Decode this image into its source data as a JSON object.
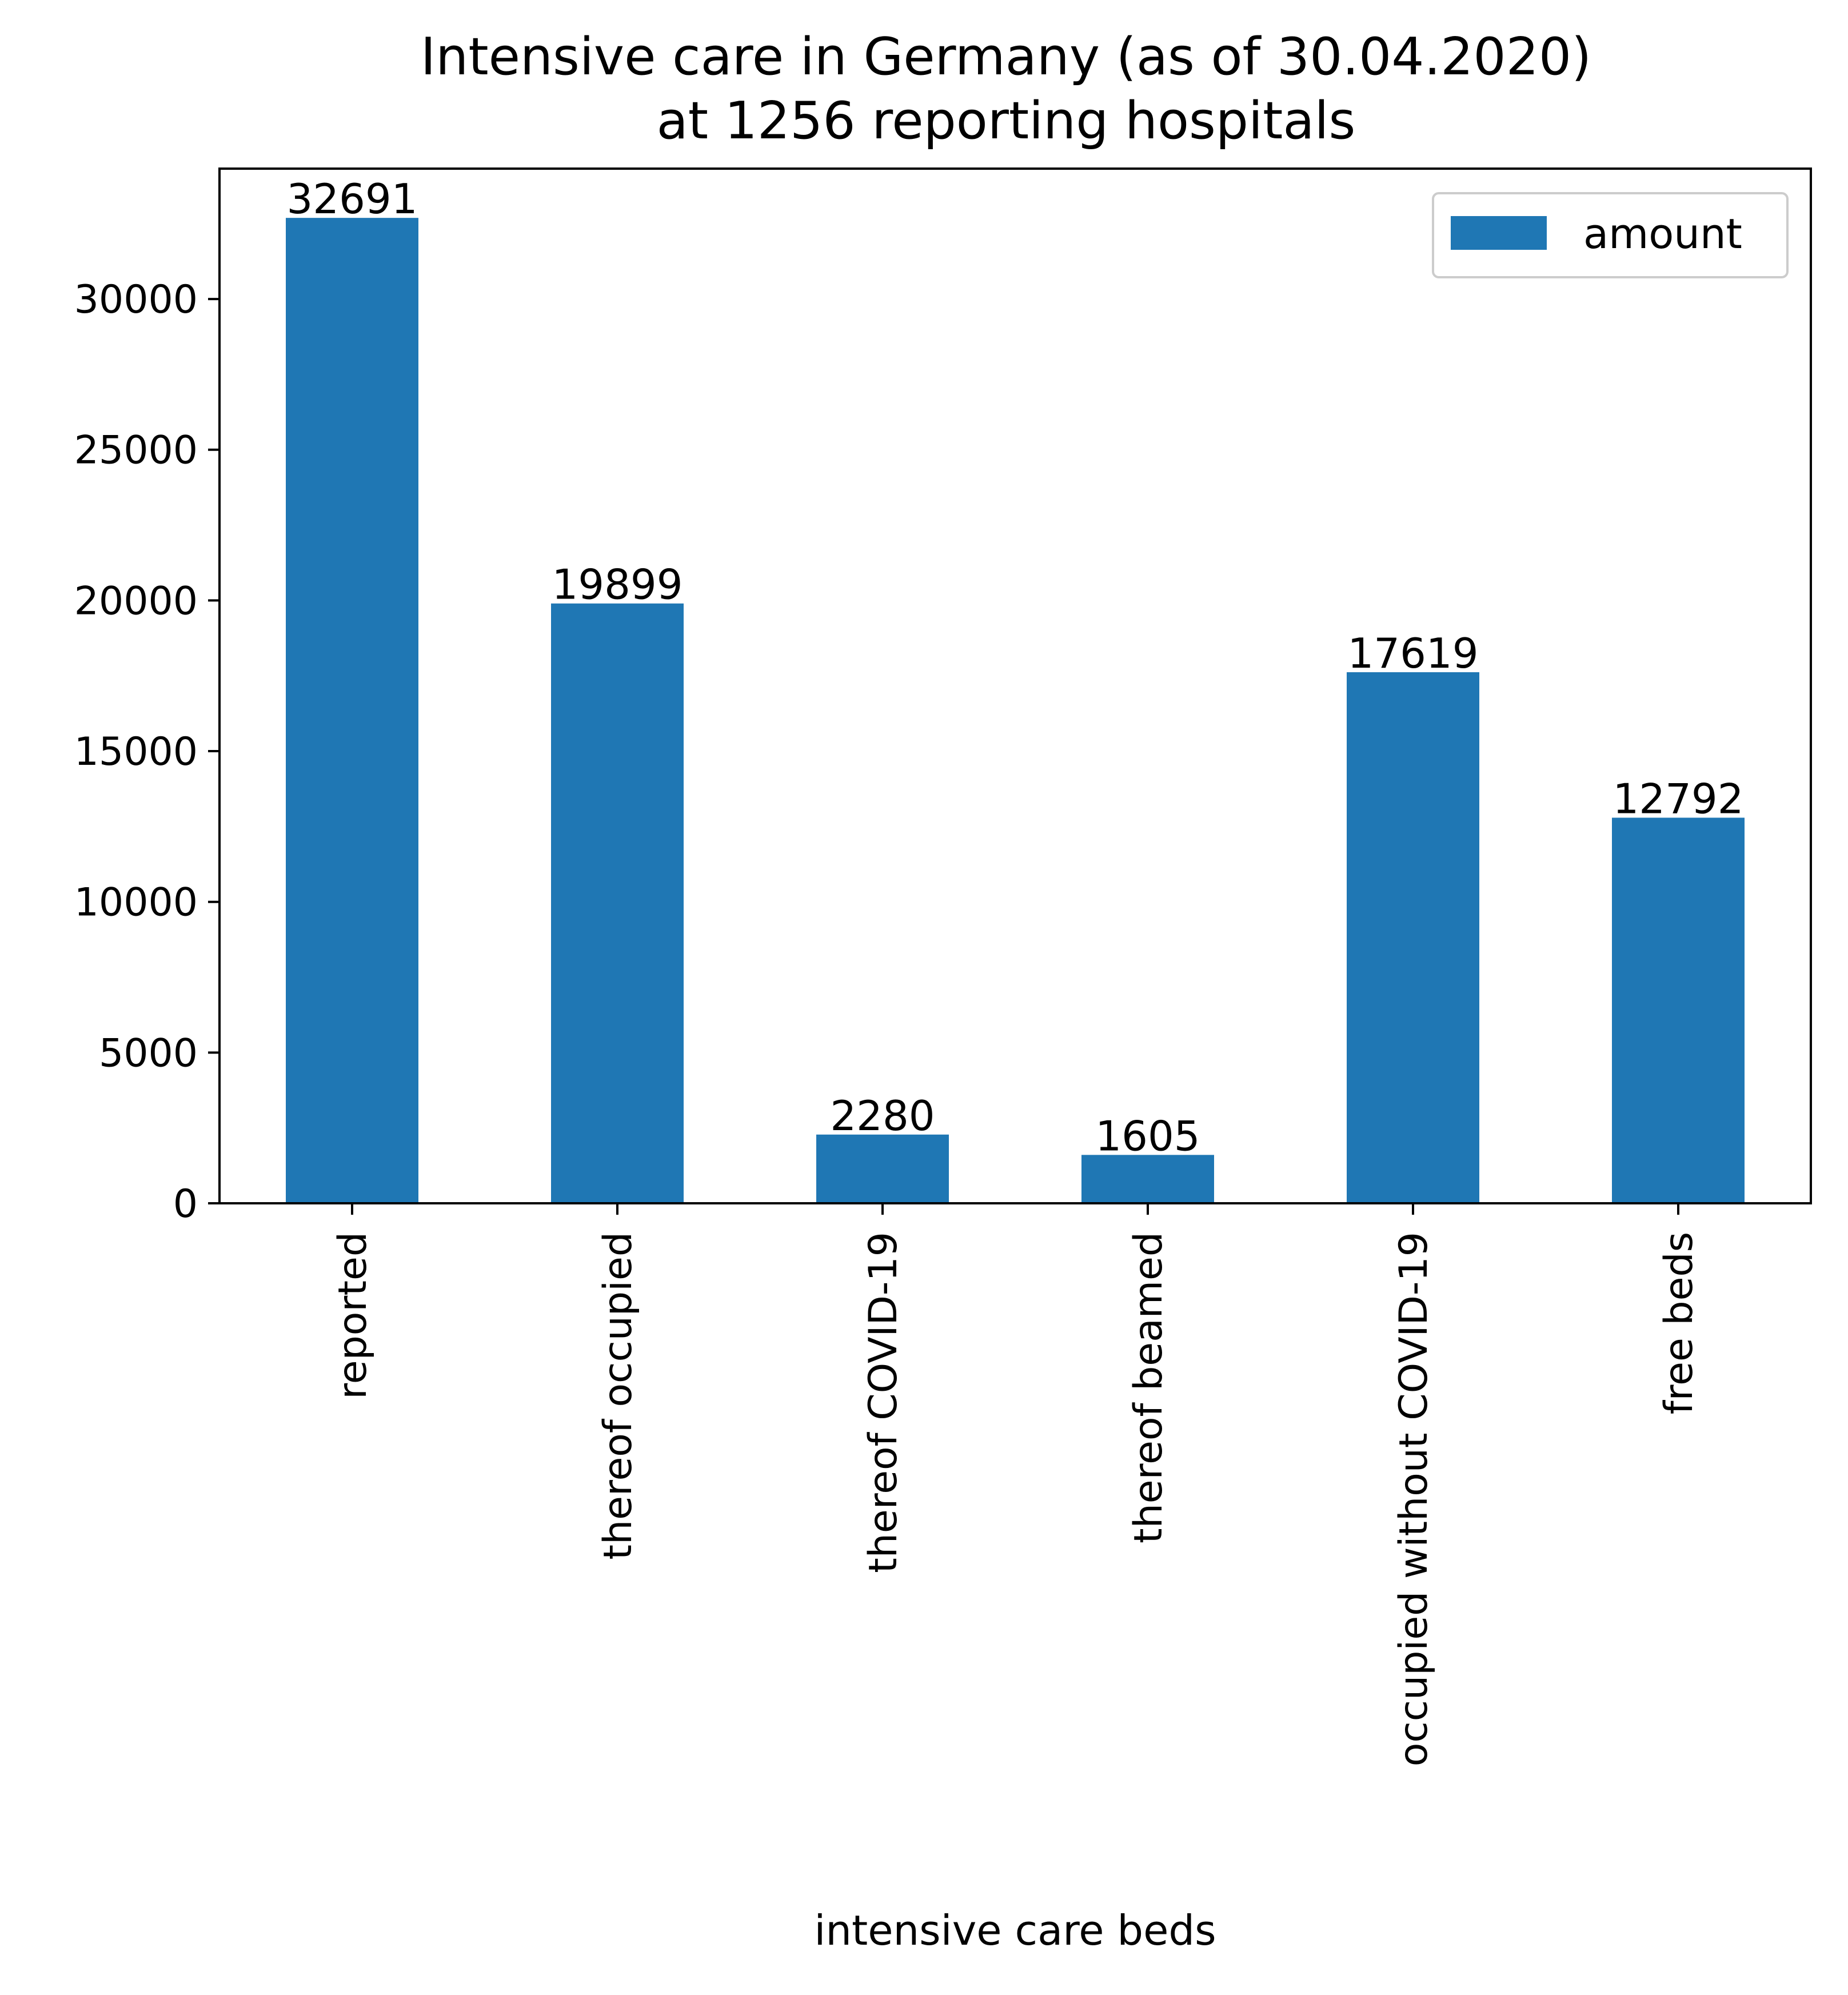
{
  "chart_data": {
    "type": "bar",
    "title": [
      "Intensive care in Germany (as of 30.04.2020)",
      "at 1256 reporting hospitals"
    ],
    "xlabel": "intensive care beds",
    "ylabel": "",
    "categories": [
      "reported",
      "thereof occupied",
      "thereof COVID-19",
      "thereof beamed",
      "occupied without COVID-19",
      "free beds"
    ],
    "series": [
      {
        "name": "amount",
        "values": [
          32691,
          19899,
          2280,
          1605,
          17619,
          12792
        ],
        "color": "#1f77b4"
      }
    ],
    "data_labels": [
      "32691",
      "19899",
      "2280",
      "1605",
      "17619",
      "12792"
    ],
    "ylim": [
      0,
      34325
    ],
    "yticks": [
      0,
      5000,
      10000,
      15000,
      20000,
      25000,
      30000
    ],
    "ytick_labels": [
      "0",
      "5000",
      "10000",
      "15000",
      "20000",
      "25000",
      "30000"
    ],
    "grid": false,
    "legend": {
      "entries": [
        "amount"
      ],
      "placement": "top-right"
    }
  }
}
